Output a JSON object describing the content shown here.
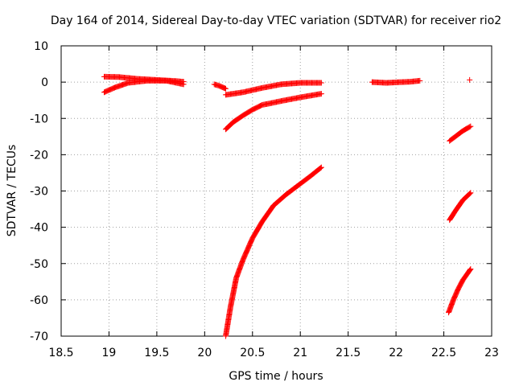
{
  "chart_data": {
    "type": "scatter",
    "title": "Day 164 of 2014, Sidereal Day-to-day VTEC variation (SDTVAR) for receiver rio2",
    "xlabel": "GPS time / hours",
    "ylabel": "SDTVAR / TECUs",
    "xlim": [
      18.5,
      23
    ],
    "ylim": [
      -70,
      10
    ],
    "xticks": [
      18.5,
      19,
      19.5,
      20,
      20.5,
      21,
      21.5,
      22,
      22.5,
      23
    ],
    "yticks": [
      -70,
      -60,
      -50,
      -40,
      -30,
      -20,
      -10,
      0,
      10
    ],
    "xtick_labels": [
      "18.5",
      "19",
      "19.5",
      "20",
      "20.5",
      "21",
      "21.5",
      "22",
      "22.5",
      "23"
    ],
    "ytick_labels": [
      "-70",
      "-60",
      "-50",
      "-40",
      "-30",
      "-20",
      "-10",
      "0",
      "10"
    ],
    "grid": true,
    "marker": "+",
    "color": "#ff0000",
    "series": [
      {
        "name": "arc-1-upper",
        "points": [
          [
            18.95,
            1.5
          ],
          [
            19.1,
            1.4
          ],
          [
            19.3,
            0.9
          ],
          [
            19.5,
            0.6
          ],
          [
            19.7,
            0.3
          ],
          [
            19.78,
            0.1
          ]
        ]
      },
      {
        "name": "arc-1-lower",
        "points": [
          [
            18.95,
            -2.8
          ],
          [
            19.05,
            -1.6
          ],
          [
            19.2,
            -0.2
          ],
          [
            19.4,
            0.4
          ],
          [
            19.6,
            0.4
          ],
          [
            19.78,
            -0.6
          ]
        ]
      },
      {
        "name": "arc-2",
        "points": [
          [
            20.1,
            -0.6
          ],
          [
            20.15,
            -1.0
          ],
          [
            20.22,
            -1.8
          ]
        ]
      },
      {
        "name": "arc-3",
        "points": [
          [
            20.22,
            -3.5
          ],
          [
            20.4,
            -2.8
          ],
          [
            20.6,
            -1.6
          ],
          [
            20.8,
            -0.6
          ],
          [
            21.0,
            -0.2
          ],
          [
            21.22,
            -0.2
          ]
        ]
      },
      {
        "name": "arc-4",
        "points": [
          [
            20.22,
            -13.0
          ],
          [
            20.3,
            -11.0
          ],
          [
            20.4,
            -9.2
          ],
          [
            20.5,
            -7.6
          ],
          [
            20.6,
            -6.3
          ],
          [
            20.8,
            -5.2
          ],
          [
            21.0,
            -4.2
          ],
          [
            21.22,
            -3.2
          ]
        ]
      },
      {
        "name": "arc-5",
        "points": [
          [
            20.22,
            -70.0
          ],
          [
            20.27,
            -62.0
          ],
          [
            20.33,
            -54.0
          ],
          [
            20.4,
            -49.0
          ],
          [
            20.5,
            -43.0
          ],
          [
            20.6,
            -38.5
          ],
          [
            20.72,
            -34.0
          ],
          [
            20.85,
            -31.0
          ],
          [
            21.0,
            -28.0
          ],
          [
            21.1,
            -26.0
          ],
          [
            21.22,
            -23.5
          ]
        ]
      },
      {
        "name": "arc-6",
        "points": [
          [
            21.75,
            0.0
          ],
          [
            21.9,
            -0.2
          ],
          [
            22.05,
            0.0
          ],
          [
            22.15,
            0.1
          ],
          [
            22.25,
            0.4
          ]
        ]
      },
      {
        "name": "arc-7",
        "points": [
          [
            22.56,
            -16.2
          ],
          [
            22.62,
            -15.0
          ],
          [
            22.7,
            -13.4
          ],
          [
            22.78,
            -12.2
          ]
        ]
      },
      {
        "name": "arc-8",
        "points": [
          [
            22.56,
            -38.0
          ],
          [
            22.62,
            -35.5
          ],
          [
            22.7,
            -32.5
          ],
          [
            22.78,
            -30.5
          ]
        ]
      },
      {
        "name": "arc-9",
        "points": [
          [
            22.55,
            -63.5
          ],
          [
            22.6,
            -60.0
          ],
          [
            22.65,
            -57.0
          ],
          [
            22.7,
            -54.5
          ],
          [
            22.78,
            -51.5
          ]
        ]
      },
      {
        "name": "isolated-point",
        "points": [
          [
            22.77,
            0.6
          ]
        ]
      }
    ]
  }
}
